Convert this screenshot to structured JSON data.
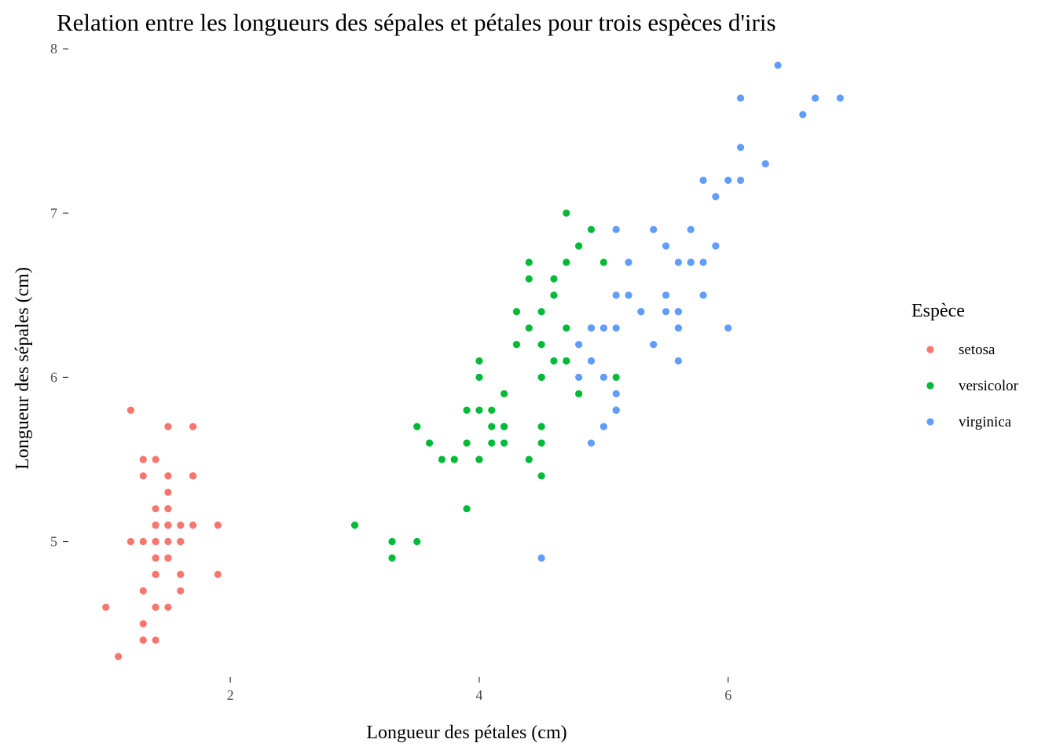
{
  "chart_data": {
    "type": "scatter",
    "title": "Relation entre les longueurs des sépales et pétales pour trois  espèces d'iris",
    "xlabel": "Longueur des pétales (cm)",
    "ylabel": "Longueur des sépales (cm)",
    "xlim": [
      0.705,
      7.195
    ],
    "ylim": [
      4.18,
      8.02
    ],
    "x_ticks": [
      2,
      4,
      6
    ],
    "x_tick_labels": [
      "2",
      "4",
      "6"
    ],
    "y_ticks": [
      5,
      6,
      7,
      8
    ],
    "y_tick_labels": [
      "5",
      "6",
      "7",
      "8"
    ],
    "grid": false,
    "legend": {
      "title": "Espèce",
      "position": "right"
    },
    "series": [
      {
        "name": "setosa",
        "color": "#F8766D",
        "points": [
          [
            1.4,
            5.1
          ],
          [
            1.4,
            4.9
          ],
          [
            1.3,
            4.7
          ],
          [
            1.5,
            4.6
          ],
          [
            1.4,
            5.0
          ],
          [
            1.7,
            5.4
          ],
          [
            1.4,
            4.6
          ],
          [
            1.5,
            5.0
          ],
          [
            1.4,
            4.4
          ],
          [
            1.5,
            4.9
          ],
          [
            1.5,
            5.4
          ],
          [
            1.6,
            4.8
          ],
          [
            1.4,
            4.8
          ],
          [
            1.1,
            4.3
          ],
          [
            1.2,
            5.8
          ],
          [
            1.5,
            5.7
          ],
          [
            1.3,
            5.4
          ],
          [
            1.4,
            5.1
          ],
          [
            1.7,
            5.7
          ],
          [
            1.5,
            5.1
          ],
          [
            1.7,
            5.4
          ],
          [
            1.5,
            5.1
          ],
          [
            1.0,
            4.6
          ],
          [
            1.7,
            5.1
          ],
          [
            1.9,
            4.8
          ],
          [
            1.6,
            5.0
          ],
          [
            1.6,
            5.0
          ],
          [
            1.5,
            5.2
          ],
          [
            1.4,
            5.2
          ],
          [
            1.6,
            4.7
          ],
          [
            1.6,
            4.8
          ],
          [
            1.5,
            5.4
          ],
          [
            1.5,
            5.2
          ],
          [
            1.4,
            5.5
          ],
          [
            1.5,
            4.9
          ],
          [
            1.2,
            5.0
          ],
          [
            1.3,
            5.5
          ],
          [
            1.4,
            4.9
          ],
          [
            1.3,
            4.4
          ],
          [
            1.5,
            5.1
          ],
          [
            1.3,
            5.0
          ],
          [
            1.3,
            4.5
          ],
          [
            1.3,
            4.4
          ],
          [
            1.6,
            5.0
          ],
          [
            1.9,
            5.1
          ],
          [
            1.4,
            4.8
          ],
          [
            1.6,
            5.1
          ],
          [
            1.4,
            4.6
          ],
          [
            1.5,
            5.3
          ],
          [
            1.4,
            5.0
          ]
        ]
      },
      {
        "name": "versicolor",
        "color": "#00BA38",
        "points": [
          [
            4.7,
            7.0
          ],
          [
            4.5,
            6.4
          ],
          [
            4.9,
            6.9
          ],
          [
            4.0,
            5.5
          ],
          [
            4.6,
            6.5
          ],
          [
            4.5,
            5.7
          ],
          [
            4.7,
            6.3
          ],
          [
            3.3,
            4.9
          ],
          [
            4.6,
            6.6
          ],
          [
            3.9,
            5.2
          ],
          [
            3.5,
            5.0
          ],
          [
            4.2,
            5.9
          ],
          [
            4.0,
            6.0
          ],
          [
            4.7,
            6.1
          ],
          [
            3.6,
            5.6
          ],
          [
            4.4,
            6.7
          ],
          [
            4.5,
            5.6
          ],
          [
            4.1,
            5.8
          ],
          [
            4.5,
            6.2
          ],
          [
            3.9,
            5.6
          ],
          [
            4.8,
            5.9
          ],
          [
            4.0,
            6.1
          ],
          [
            4.9,
            6.3
          ],
          [
            4.7,
            6.1
          ],
          [
            4.3,
            6.4
          ],
          [
            4.4,
            6.6
          ],
          [
            4.8,
            6.8
          ],
          [
            5.0,
            6.7
          ],
          [
            4.5,
            6.0
          ],
          [
            3.5,
            5.7
          ],
          [
            3.8,
            5.5
          ],
          [
            3.7,
            5.5
          ],
          [
            3.9,
            5.8
          ],
          [
            5.1,
            6.0
          ],
          [
            4.5,
            5.4
          ],
          [
            4.5,
            6.0
          ],
          [
            4.7,
            6.7
          ],
          [
            4.4,
            6.3
          ],
          [
            4.1,
            5.6
          ],
          [
            4.0,
            5.5
          ],
          [
            4.4,
            5.5
          ],
          [
            4.6,
            6.1
          ],
          [
            4.0,
            5.8
          ],
          [
            3.3,
            5.0
          ],
          [
            4.2,
            5.6
          ],
          [
            4.2,
            5.7
          ],
          [
            4.2,
            5.7
          ],
          [
            4.3,
            6.2
          ],
          [
            3.0,
            5.1
          ],
          [
            4.1,
            5.7
          ]
        ]
      },
      {
        "name": "virginica",
        "color": "#619CFF",
        "points": [
          [
            6.0,
            6.3
          ],
          [
            5.1,
            5.8
          ],
          [
            5.9,
            7.1
          ],
          [
            5.6,
            6.3
          ],
          [
            5.8,
            6.5
          ],
          [
            6.6,
            7.6
          ],
          [
            4.5,
            4.9
          ],
          [
            6.3,
            7.3
          ],
          [
            5.8,
            6.7
          ],
          [
            6.1,
            7.2
          ],
          [
            5.1,
            6.5
          ],
          [
            5.3,
            6.4
          ],
          [
            5.5,
            6.8
          ],
          [
            5.0,
            5.7
          ],
          [
            5.1,
            5.8
          ],
          [
            5.3,
            6.4
          ],
          [
            5.5,
            6.5
          ],
          [
            6.7,
            7.7
          ],
          [
            6.9,
            7.7
          ],
          [
            5.0,
            6.0
          ],
          [
            5.7,
            6.9
          ],
          [
            4.9,
            5.6
          ],
          [
            6.7,
            7.7
          ],
          [
            4.9,
            6.3
          ],
          [
            5.7,
            6.7
          ],
          [
            6.0,
            7.2
          ],
          [
            4.8,
            6.2
          ],
          [
            4.9,
            6.1
          ],
          [
            5.6,
            6.4
          ],
          [
            5.8,
            7.2
          ],
          [
            6.1,
            7.4
          ],
          [
            6.4,
            7.9
          ],
          [
            5.6,
            6.4
          ],
          [
            5.1,
            6.3
          ],
          [
            5.6,
            6.1
          ],
          [
            6.1,
            7.7
          ],
          [
            5.6,
            6.3
          ],
          [
            5.5,
            6.4
          ],
          [
            4.8,
            6.0
          ],
          [
            5.4,
            6.9
          ],
          [
            5.6,
            6.7
          ],
          [
            5.1,
            6.9
          ],
          [
            5.1,
            5.8
          ],
          [
            5.9,
            6.8
          ],
          [
            5.7,
            6.7
          ],
          [
            5.2,
            6.7
          ],
          [
            5.0,
            6.3
          ],
          [
            5.2,
            6.5
          ],
          [
            5.4,
            6.2
          ],
          [
            5.1,
            5.9
          ]
        ]
      }
    ]
  }
}
